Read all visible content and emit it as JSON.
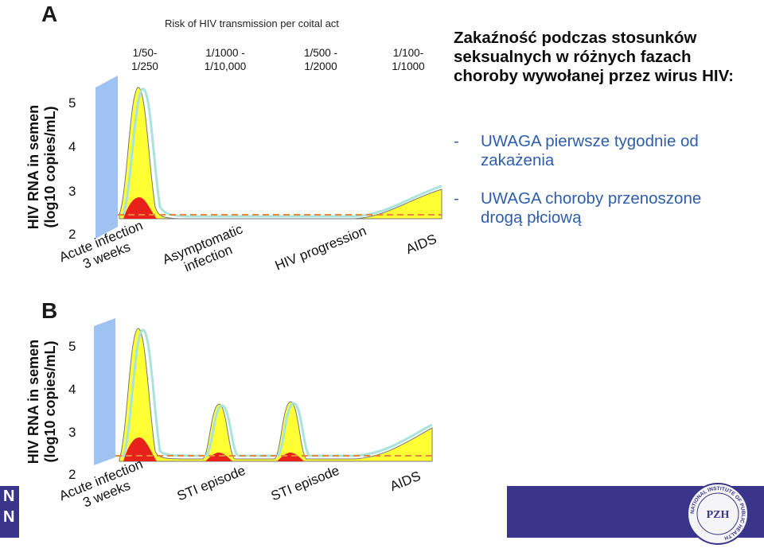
{
  "panel_a": {
    "letter": "A",
    "risk_title": "Risk of HIV transmission per coital act",
    "risk_values": [
      "1/50-\n1/250",
      "1/1000 -\n1/10,000",
      "1/500 -\n1/2000",
      "1/100-\n1/1000"
    ],
    "y_title_line1": "HIV RNA in semen",
    "y_title_line2": "(log10 copies/mL)",
    "y_ticks": [
      "5",
      "4",
      "3",
      "2"
    ],
    "x_labels": [
      "Acute infection\n3 weeks",
      "Asymptomatic\ninfection",
      "HIV progression",
      "AIDS"
    ]
  },
  "panel_b": {
    "letter": "B",
    "y_title_line1": "HIV RNA in semen",
    "y_title_line2": "(log10 copies/mL)",
    "y_ticks": [
      "5",
      "4",
      "3",
      "2"
    ],
    "x_labels": [
      "Acute infection\n3 weeks",
      "STI episode",
      "STI episode",
      "AIDS"
    ]
  },
  "notes": {
    "heading": "Zakaźność podczas stosunków seksualnych w różnych fazach choroby wywołanej przez wirus HIV:",
    "bullets": [
      {
        "dash": "-",
        "text": "UWAGA pierwsze tygodnie od zakażenia"
      },
      {
        "dash": "-",
        "text": "UWAGA choroby przenoszone drogą płciową"
      }
    ]
  },
  "footer": {
    "left_letters": "N\nN",
    "seal_text": "NATIONAL INSTITUTE OF PUBLIC HEALTH",
    "seal_center": "PZH"
  },
  "colors": {
    "yellow_fill": "#ffff33",
    "red_fill": "#e8221b",
    "cyan_line": "#a8e4dc",
    "dashed_line": "#e9883a",
    "blue_band": "#9ec3f2",
    "footer_bar": "#38358a"
  }
}
